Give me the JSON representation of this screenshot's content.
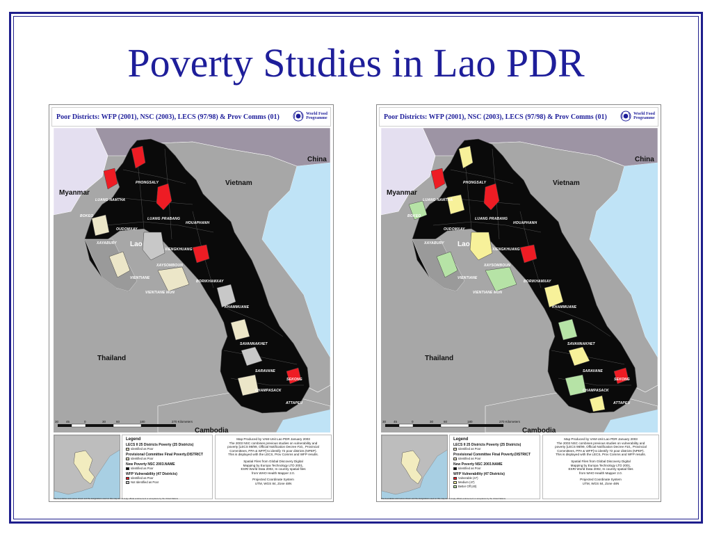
{
  "slide": {
    "title": "Poverty Studies in Lao PDR"
  },
  "colors": {
    "slide_border": "#1e1e8c",
    "title": "#1e1e9a",
    "poor_black": "#0a0a0a",
    "vulnerable_red": "#ee1c24",
    "identified_beige": "#ece6c8",
    "not_identified_gray": "#c8c8c8",
    "medium_yellow": "#f7f19a",
    "better_off_green": "#b6e3a6",
    "water_blue": "#bfe3f6",
    "myanmar_lavender": "#e4dff0",
    "china_mauve": "#9d94a4",
    "neighbor_gray": "#a7a7a7"
  },
  "maps": [
    {
      "title": "Poor Districts: WFP (2001), NSC (2003), LECS (97/98) & Prov Comms (01)",
      "logo_icon": "wfp-wreath-icon",
      "logo_line1": "World Food",
      "logo_line2": "Programme",
      "countries": {
        "china": "China",
        "vietnam": "Vietnam",
        "myanmar": "Myanmar",
        "lao": "Lao",
        "thailand": "Thailand",
        "cambodia": "Cambodia"
      },
      "provinces": {
        "phongsaly": "PHONGSALY",
        "luang_namtha": "LUANG NAMTHA",
        "bokeo": "BOKEO",
        "oudomxay": "OUDOMXAY",
        "luang_prabang": "LUANG PRABANG",
        "houaphanh": "HOUAPHANH",
        "xayabury": "XAYABURY",
        "xiengkhuang": "XIENGKHUANG",
        "xaysomboun": "XAYSOMBOUN",
        "vientiane": "VIENTIANE",
        "vientiane_mun": "VIENTIANE MUN",
        "borikhamxay": "BORIKHAMXAY",
        "khammuane": "KHAMMUANE",
        "savannakhet": "SAVANNAKHET",
        "saravane": "SARAVANE",
        "sekong": "SEKONG",
        "champasack": "CHAMPASACK",
        "attapeu": "ATTAPEU"
      },
      "scale": {
        "ticks": [
          "30",
          "45",
          "0",
          "30",
          "60",
          "180",
          "270 Kilometers"
        ]
      },
      "legend": {
        "title": "Legend",
        "sections": [
          {
            "heading": "LECS II 25 Districts Poverty (25 Districts)",
            "items": [
              {
                "label": "Identified as Poor",
                "color": "#ece6c8"
              }
            ]
          },
          {
            "heading": "Provisional Committee Final Poverty.DISTRICT",
            "items": [
              {
                "label": "Identified as Poor",
                "color": "#ece6c8"
              }
            ]
          },
          {
            "heading": "New Poverty NSC 2003.NAME",
            "items": [
              {
                "label": "Identified as Poor",
                "color": "#0a0a0a"
              }
            ]
          },
          {
            "heading": "WFP Vulnerability (47 Districts)",
            "items": [
              {
                "label": "Identified as Poor",
                "color": "#ee1c24"
              },
              {
                "label": "Not Identified as Poor",
                "color": "#c8c8c8"
              }
            ]
          }
        ]
      },
      "credits": [
        "Map Produced by VAM-Unit Lao PDR January 2003",
        "The 2003 NSC combines previous studies on vulnerability and",
        "poverty [LECS 98/99, Official Notification Decree #10,, Provincial",
        "Committees, PPA & WFP] to identify 72 poor districts (NPEP).",
        "This is displayed with the LECS, Prov Comms and WFP results.",
        "",
        "Spatial Files from Global Discovery Digital",
        "Mapping by Europa Technology LTD 2001,",
        "ESRI World Data 2002, In country spatial files",
        "from WHO Health Mapper 2.0.",
        "",
        "Projected Coordinate System",
        "UTM, WGS 84, Zone 48N"
      ],
      "disclaimer": "The boundaries and names shown and the designations used on this map do not imply official endorsement or acceptance by the United Nations"
    },
    {
      "title": "Poor Districts: WFP (2001), NSC (2003), LECS (97/98) & Prov Comms (01)",
      "logo_icon": "wfp-wreath-icon",
      "logo_line1": "World Food",
      "logo_line2": "Programme",
      "countries": {
        "china": "China",
        "vietnam": "Vietnam",
        "myanmar": "Myanmar",
        "lao": "Lao",
        "thailand": "Thailand",
        "cambodia": "Cambodia"
      },
      "provinces": {
        "phongsaly": "PHONGSALY",
        "luang_namtha": "LUANG NAMTHA",
        "bokeo": "BOKEO",
        "oudomxay": "OUDOMXAY",
        "luang_prabang": "LUANG PRABANG",
        "houaphanh": "HOUAPHANH",
        "xayabury": "XAYABURY",
        "xiengkhuang": "XIENGKHUANG",
        "xaysomboun": "XAYSOMBOUN",
        "vientiane": "VIENTIANE",
        "vientiane_mun": "VIENTIANE MUN",
        "borikhamxay": "BORIKHAMXAY",
        "khammuane": "KHAMMUANE",
        "savannakhet": "SAVANNAKHET",
        "saravane": "SARAVANE",
        "sekong": "SEKONG",
        "champasack": "CHAMPASACK",
        "attapeu": "ATTAPEU"
      },
      "scale": {
        "ticks": [
          "30",
          "45",
          "0",
          "30",
          "60",
          "180",
          "270 Kilometers"
        ]
      },
      "legend": {
        "title": "Legend",
        "sections": [
          {
            "heading": "LECS II 25 Districts Poverty (25 Districts)",
            "items": [
              {
                "label": "Identified as Poor",
                "color": "#ece6c8"
              }
            ]
          },
          {
            "heading": "Provisional Committee Final Poverty.DISTRICT",
            "items": [
              {
                "label": "Identified as Poor",
                "color": "#ece6c8"
              }
            ]
          },
          {
            "heading": "New Poverty NSC 2003.NAME",
            "items": [
              {
                "label": "Identified as Poor",
                "color": "#0a0a0a"
              }
            ]
          },
          {
            "heading": "WFP Vulnerability (47 Districts)",
            "items": [
              {
                "label": "Vulnerable (47)",
                "color": "#ee1c24"
              },
              {
                "label": "Medium (47)",
                "color": "#f7f19a"
              },
              {
                "label": "Better Off (40)",
                "color": "#b6e3a6"
              }
            ]
          }
        ]
      },
      "credits": [
        "Map Produced by VAM-Unit Lao PDR January 2003",
        "The 2003 NSC combines previous studies on vulnerability and",
        "poverty [LECS 98/99, Official Notification Decree #10,, Provincial",
        "Committees, PPA & WFP] to identify 72 poor districts (NPEP).",
        "This is displayed with the LECS, Prov Comms and WFP results.",
        "",
        "Spatial Files from Global Discovery Digital",
        "Mapping by Europa Technology LTD 2001,",
        "ESRI World Data 2002, In country spatial files",
        "from WHO Health Mapper 2.0.",
        "",
        "Projected Coordinate System",
        "UTM, WGS 84, Zone 48N"
      ],
      "disclaimer": "The boundaries and names shown and the designations used on this map do not imply official endorsement or acceptance by the United Nations"
    }
  ]
}
